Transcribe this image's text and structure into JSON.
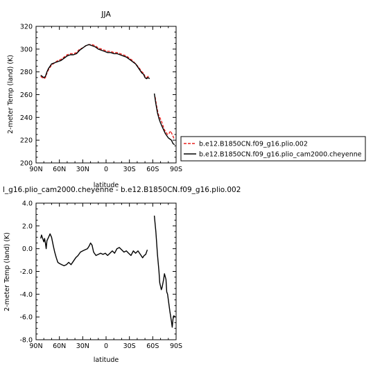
{
  "chart_data": [
    {
      "type": "line",
      "title": "JJA",
      "xlabel": "latitude",
      "ylabel": "2-meter Temp (land) (K)",
      "xlim": [
        90,
        -90
      ],
      "ylim": [
        200,
        320
      ],
      "xticks": [
        90,
        60,
        30,
        0,
        -30,
        -60,
        -90
      ],
      "xtick_labels": [
        "90N",
        "60N",
        "30N",
        "0",
        "30S",
        "60S",
        "90S"
      ],
      "yticks": [
        200,
        220,
        240,
        260,
        280,
        300,
        320
      ],
      "ytick_labels": [
        "200",
        "220",
        "240",
        "260",
        "280",
        "300",
        "320"
      ],
      "legend_position": "right",
      "series": [
        {
          "name": "b.e12.B1850CN.f09_g16.plio.002",
          "color": "#e8201e",
          "dash": "dashed",
          "segments": [
            [
              [
                84,
                276
              ],
              [
                82,
                275
              ],
              [
                80,
                274
              ],
              [
                78,
                275
              ],
              [
                76,
                279
              ],
              [
                74,
                282
              ],
              [
                72,
                284
              ],
              [
                70,
                286
              ],
              [
                66,
                288
              ],
              [
                62,
                290
              ],
              [
                58,
                291
              ],
              [
                54,
                293
              ],
              [
                50,
                295
              ],
              [
                46,
                296
              ],
              [
                42,
                296
              ],
              [
                38,
                297
              ],
              [
                34,
                300
              ],
              [
                30,
                301
              ],
              [
                26,
                303
              ],
              [
                22,
                304
              ],
              [
                18,
                304
              ],
              [
                14,
                303
              ],
              [
                10,
                301
              ],
              [
                6,
                300
              ],
              [
                2,
                299
              ],
              [
                -2,
                298
              ],
              [
                -6,
                298
              ],
              [
                -10,
                297
              ],
              [
                -14,
                297
              ],
              [
                -18,
                296
              ],
              [
                -22,
                295
              ],
              [
                -26,
                294
              ],
              [
                -30,
                292
              ],
              [
                -34,
                290
              ],
              [
                -38,
                287
              ],
              [
                -42,
                284
              ],
              [
                -46,
                280
              ],
              [
                -48,
                279
              ],
              [
                -50,
                276
              ],
              [
                -52,
                275
              ],
              [
                -54,
                276
              ],
              [
                -56,
                275
              ]
            ],
            [
              [
                -63,
                258
              ],
              [
                -65,
                250
              ],
              [
                -67,
                243
              ],
              [
                -69,
                240
              ],
              [
                -71,
                237
              ],
              [
                -73,
                233
              ],
              [
                -75,
                229
              ],
              [
                -77,
                227
              ],
              [
                -79,
                225
              ],
              [
                -81,
                226
              ],
              [
                -83,
                228
              ],
              [
                -85,
                225
              ],
              [
                -87,
                222
              ],
              [
                -88,
                221
              ]
            ]
          ]
        },
        {
          "name": "b.e12.B1850CN.f09_g16.plio_cam2000.cheyenne",
          "color": "#000000",
          "dash": "solid",
          "segments": [
            [
              [
                84,
                277
              ],
              [
                82,
                276
              ],
              [
                80,
                275
              ],
              [
                78,
                276
              ],
              [
                76,
                280
              ],
              [
                74,
                283
              ],
              [
                72,
                285
              ],
              [
                70,
                287
              ],
              [
                66,
                288
              ],
              [
                62,
                289
              ],
              [
                58,
                290
              ],
              [
                54,
                292
              ],
              [
                50,
                294
              ],
              [
                46,
                295
              ],
              [
                42,
                295
              ],
              [
                38,
                296
              ],
              [
                34,
                299
              ],
              [
                30,
                301
              ],
              [
                26,
                303
              ],
              [
                22,
                304
              ],
              [
                18,
                303
              ],
              [
                14,
                302
              ],
              [
                10,
                300
              ],
              [
                6,
                299
              ],
              [
                2,
                298
              ],
              [
                -2,
                297
              ],
              [
                -6,
                297
              ],
              [
                -10,
                296
              ],
              [
                -14,
                296
              ],
              [
                -18,
                295
              ],
              [
                -22,
                294
              ],
              [
                -26,
                293
              ],
              [
                -30,
                291
              ],
              [
                -34,
                289
              ],
              [
                -38,
                287
              ],
              [
                -42,
                283
              ],
              [
                -46,
                279
              ],
              [
                -48,
                278
              ],
              [
                -50,
                275
              ],
              [
                -52,
                274
              ],
              [
                -54,
                275
              ],
              [
                -56,
                274
              ]
            ],
            [
              [
                -62,
                261
              ],
              [
                -64,
                252
              ],
              [
                -66,
                244
              ],
              [
                -68,
                239
              ],
              [
                -70,
                235
              ],
              [
                -72,
                232
              ],
              [
                -74,
                229
              ],
              [
                -76,
                226
              ],
              [
                -78,
                224
              ],
              [
                -80,
                222
              ],
              [
                -82,
                221
              ],
              [
                -84,
                220
              ],
              [
                -86,
                217
              ],
              [
                -88,
                216
              ]
            ]
          ]
        }
      ]
    },
    {
      "type": "line",
      "title": "l_g16.plio_cam2000.cheyenne - b.e12.B1850CN.f09_g16.plio.002",
      "xlabel": "latitude",
      "ylabel": "2-meter Temp (land) (K)",
      "xlim": [
        90,
        -90
      ],
      "ylim": [
        -8,
        4
      ],
      "xticks": [
        90,
        60,
        30,
        0,
        -30,
        -60,
        -90
      ],
      "xtick_labels": [
        "90N",
        "60N",
        "30N",
        "0",
        "30S",
        "60S",
        "90S"
      ],
      "yticks": [
        -8,
        -6,
        -4,
        -2,
        0,
        2,
        4
      ],
      "ytick_labels": [
        "-8.0",
        "-6.0",
        "-4.0",
        "-2.0",
        "0.0",
        "2.0",
        "4.0"
      ],
      "series": [
        {
          "name": "",
          "color": "#000000",
          "dash": "solid",
          "segments": [
            [
              [
                84,
                0.9
              ],
              [
                83,
                1.2
              ],
              [
                82,
                1.0
              ],
              [
                80,
                0.6
              ],
              [
                79,
                0.9
              ],
              [
                78,
                0.5
              ],
              [
                77,
                0.0
              ],
              [
                76,
                0.7
              ],
              [
                74,
                1.0
              ],
              [
                72,
                1.3
              ],
              [
                70,
                1.0
              ],
              [
                68,
                0.3
              ],
              [
                66,
                -0.3
              ],
              [
                64,
                -0.8
              ],
              [
                62,
                -1.2
              ],
              [
                60,
                -1.3
              ],
              [
                57,
                -1.4
              ],
              [
                54,
                -1.5
              ],
              [
                51,
                -1.4
              ],
              [
                48,
                -1.2
              ],
              [
                45,
                -1.4
              ],
              [
                42,
                -1.1
              ],
              [
                39,
                -0.8
              ],
              [
                36,
                -0.6
              ],
              [
                33,
                -0.3
              ],
              [
                30,
                -0.2
              ],
              [
                27,
                -0.1
              ],
              [
                24,
                0.0
              ],
              [
                22,
                0.2
              ],
              [
                20,
                0.5
              ],
              [
                18,
                0.3
              ],
              [
                16,
                -0.3
              ],
              [
                13,
                -0.6
              ],
              [
                10,
                -0.5
              ],
              [
                7,
                -0.4
              ],
              [
                4,
                -0.5
              ],
              [
                1,
                -0.4
              ],
              [
                -2,
                -0.6
              ],
              [
                -5,
                -0.4
              ],
              [
                -8,
                -0.2
              ],
              [
                -11,
                -0.4
              ],
              [
                -14,
                0.0
              ],
              [
                -17,
                0.1
              ],
              [
                -20,
                -0.1
              ],
              [
                -23,
                -0.3
              ],
              [
                -26,
                -0.2
              ],
              [
                -29,
                -0.4
              ],
              [
                -32,
                -0.6
              ],
              [
                -35,
                -0.2
              ],
              [
                -38,
                -0.4
              ],
              [
                -41,
                -0.2
              ],
              [
                -44,
                -0.5
              ],
              [
                -47,
                -0.8
              ],
              [
                -49,
                -0.6
              ],
              [
                -51,
                -0.5
              ],
              [
                -53,
                -0.1
              ]
            ],
            [
              [
                -62,
                2.9
              ],
              [
                -64,
                1.5
              ],
              [
                -66,
                -0.5
              ],
              [
                -68,
                -2.0
              ],
              [
                -69,
                -3.0
              ],
              [
                -71,
                -3.6
              ],
              [
                -72,
                -3.4
              ],
              [
                -74,
                -2.7
              ],
              [
                -75,
                -2.2
              ],
              [
                -77,
                -2.7
              ],
              [
                -78,
                -3.8
              ],
              [
                -79,
                -4.0
              ],
              [
                -80,
                -4.5
              ],
              [
                -82,
                -5.5
              ],
              [
                -84,
                -6.4
              ],
              [
                -85,
                -6.9
              ],
              [
                -86,
                -6.2
              ],
              [
                -87,
                -5.9
              ],
              [
                -89,
                -6.0
              ]
            ]
          ]
        }
      ]
    }
  ]
}
